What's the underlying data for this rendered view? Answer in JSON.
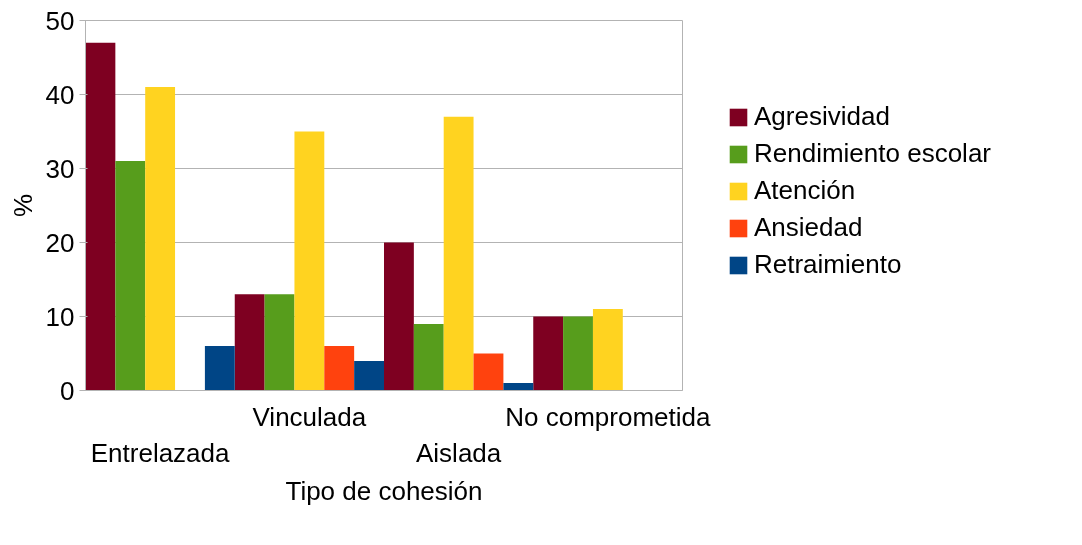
{
  "chart_data": {
    "type": "bar",
    "xlabel": "Tipo de cohesión",
    "ylabel": "%",
    "categories": [
      "Entrelazada",
      "Vinculada",
      "Aislada",
      "No comprometida"
    ],
    "series": [
      {
        "name": "Agresividad",
        "color": "#7e0021",
        "values": [
          47,
          13,
          20,
          10
        ]
      },
      {
        "name": "Rendimiento escolar",
        "color": "#579d1c",
        "values": [
          31,
          13,
          9,
          10
        ]
      },
      {
        "name": "Atención",
        "color": "#ffd320",
        "values": [
          41,
          35,
          37,
          11
        ]
      },
      {
        "name": "Ansiedad",
        "color": "#ff420e",
        "values": [
          0,
          6,
          5,
          0
        ]
      },
      {
        "name": "Retraimiento",
        "color": "#004586",
        "values": [
          6,
          4,
          1,
          0
        ]
      }
    ],
    "ylim": [
      0,
      50
    ],
    "yticks": [
      0,
      10,
      20,
      30,
      40,
      50
    ],
    "grid": "y",
    "legend": "right"
  }
}
